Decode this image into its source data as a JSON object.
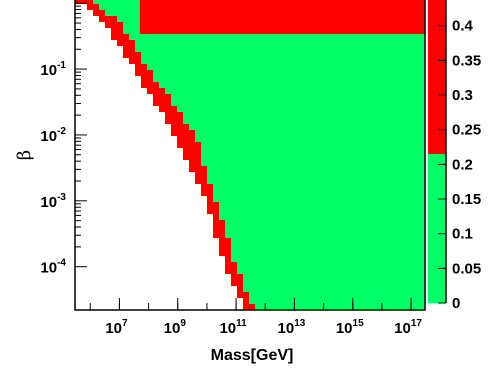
{
  "chart_data": {
    "type": "heatmap",
    "title": "",
    "xlabel": "Mass[GeV]",
    "ylabel": "β",
    "x_scale": "log",
    "y_scale": "log",
    "xlim": [
      300000.0,
      3e+17
    ],
    "ylim": [
      2.2e-05,
      1.2
    ],
    "x_ticks": [
      {
        "base": "10",
        "exp": "7",
        "value": 10000000.0
      },
      {
        "base": "10",
        "exp": "9",
        "value": 1000000000.0
      },
      {
        "base": "10",
        "exp": "11",
        "value": 100000000000.0
      },
      {
        "base": "10",
        "exp": "13",
        "value": 10000000000000.0
      },
      {
        "base": "10",
        "exp": "15",
        "value": 1000000000000000.0
      },
      {
        "base": "10",
        "exp": "17",
        "value": 1e+17
      }
    ],
    "y_ticks": [
      {
        "base": "10",
        "exp": "-1",
        "value": 0.1
      },
      {
        "base": "10",
        "exp": "-2",
        "value": 0.01
      },
      {
        "base": "10",
        "exp": "-3",
        "value": 0.001
      },
      {
        "base": "10",
        "exp": "-4",
        "value": 0.0001
      }
    ],
    "colorbar": {
      "min": 0,
      "max": 0.44,
      "threshold": 0.215,
      "tick_labels": [
        "0",
        "0.05",
        "0.1",
        "0.15",
        "0.2",
        "0.25",
        "0.3",
        "0.35",
        "0.4"
      ],
      "tick_values": [
        0,
        0.05,
        0.1,
        0.15,
        0.2,
        0.25,
        0.3,
        0.35,
        0.4
      ]
    },
    "colors": {
      "low": "#00ff66",
      "high": "#ff0000",
      "empty": "#ffffff",
      "frame": "#000000"
    },
    "regions": {
      "boundary_logM_vs_logbeta": [
        [
          0.05,
          5.5
        ],
        [
          -0.3,
          6.5
        ],
        [
          -1.0,
          7.5
        ],
        [
          -2.0,
          8.9
        ],
        [
          -3.0,
          10.0
        ],
        [
          -4.0,
          10.6
        ],
        [
          -4.6,
          11.3
        ]
      ],
      "red_band_upper_edge_logM_vs_logbeta": [
        [
          0.05,
          6.0
        ],
        [
          -0.3,
          7.0
        ],
        [
          -1.0,
          8.0
        ],
        [
          -2.0,
          9.6
        ],
        [
          -3.0,
          10.3
        ],
        [
          -4.0,
          11.0
        ],
        [
          -4.6,
          11.6
        ]
      ],
      "red_top_block_logbeta_above": -0.49,
      "red_top_block_logM_from": 7.7
    }
  }
}
